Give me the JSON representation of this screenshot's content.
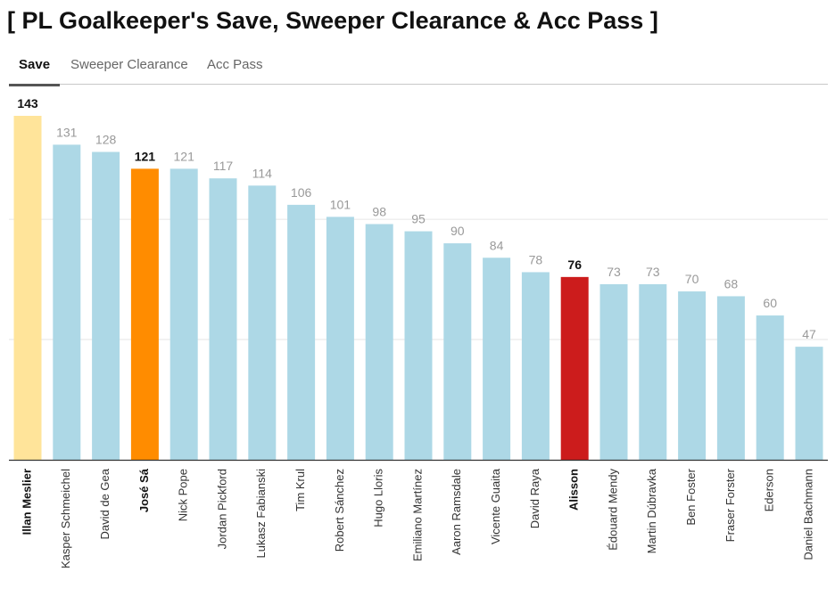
{
  "page": {
    "title": "[ PL Goalkeeper's Save, Sweeper Clearance & Acc Pass ]"
  },
  "tabs": [
    {
      "label": "Save",
      "active": true
    },
    {
      "label": "Sweeper Clearance",
      "active": false
    },
    {
      "label": "Acc Pass",
      "active": false
    }
  ],
  "chart_data": {
    "type": "bar",
    "title": "",
    "xlabel": "",
    "ylabel": "",
    "ylim": [
      0,
      143
    ],
    "grid": true,
    "categories": [
      "Illan Meslier",
      "Kasper Schmeichel",
      "David de Gea",
      "José Sá",
      "Nick Pope",
      "Jordan Pickford",
      "Lukasz Fabianski",
      "Tim Krul",
      "Robert Sánchez",
      "Hugo Lloris",
      "Emiliano Martínez",
      "Aaron Ramsdale",
      "Vicente Guaita",
      "David Raya",
      "Alisson",
      "Édouard Mendy",
      "Martin Dúbravka",
      "Ben Foster",
      "Fraser Forster",
      "Ederson",
      "Daniel Bachmann"
    ],
    "values": [
      143,
      131,
      128,
      121,
      121,
      117,
      114,
      106,
      101,
      98,
      95,
      90,
      84,
      78,
      76,
      73,
      73,
      70,
      68,
      60,
      47
    ],
    "highlighted": [
      "Illan Meslier",
      "José Sá",
      "Alisson"
    ],
    "colors": {
      "default": "#add8e6",
      "Illan Meslier": "#ffe49a",
      "José Sá": "#ff8c00",
      "Alisson": "#cc1c1c",
      "default_label": "#999999",
      "highlight_label": "#111111"
    }
  }
}
